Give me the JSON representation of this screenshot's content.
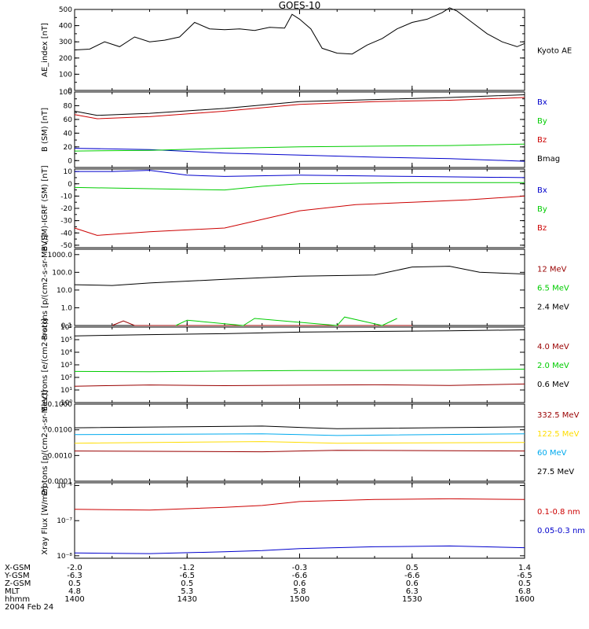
{
  "title": "GOES-10",
  "x": {
    "min": 1400,
    "max": 1600,
    "ticks": [
      1400,
      1430,
      1500,
      1530,
      1600
    ]
  },
  "footer": {
    "row_labels": [
      "X-GSM",
      "Y-GSM",
      "Z-GSM",
      "MLT",
      "hhmm"
    ],
    "columns": [
      [
        "-2.0",
        "-6.3",
        "0.5",
        "4.8",
        "1400"
      ],
      [
        "-1.2",
        "-6.5",
        "0.5",
        "5.3",
        "1430"
      ],
      [
        "-0.3",
        "-6.6",
        "0.6",
        "5.8",
        "1500"
      ],
      [
        "0.5",
        "-6.6",
        "0.6",
        "6.3",
        "1530"
      ],
      [
        "1.4",
        "-6.5",
        "0.5",
        "6.8",
        "1600"
      ]
    ],
    "date": "2004 Feb 24"
  },
  "colors": {
    "black": "#000000",
    "blue": "#0000cc",
    "green": "#00cc00",
    "red": "#cc0000",
    "darkred": "#990000",
    "yellow": "#ffdd00",
    "cyan": "#00aaee"
  },
  "chart_data": [
    {
      "type": "line",
      "id": "ae",
      "ylabel": "AE_index [nT]",
      "ylim": [
        0,
        500
      ],
      "yscale": "linear",
      "yticks": [
        0,
        100,
        200,
        300,
        400,
        500
      ],
      "ytick_labels": [
        "0",
        "100",
        "200",
        "300",
        "400",
        "500"
      ],
      "series": [
        {
          "name": "Kyoto AE",
          "color": "#000000",
          "x": [
            1400,
            1404,
            1408,
            1412,
            1416,
            1420,
            1424,
            1428,
            1432,
            1436,
            1440,
            1444,
            1448,
            1452,
            1456,
            1458,
            1500,
            1503,
            1506,
            1510,
            1514,
            1518,
            1522,
            1526,
            1530,
            1534,
            1538,
            1540,
            1542,
            1546,
            1550,
            1554,
            1558,
            1600
          ],
          "y": [
            250,
            255,
            300,
            270,
            330,
            300,
            310,
            330,
            420,
            380,
            375,
            380,
            370,
            390,
            385,
            470,
            440,
            380,
            260,
            230,
            225,
            280,
            320,
            380,
            420,
            440,
            480,
            510,
            490,
            420,
            350,
            300,
            270,
            290
          ]
        }
      ]
    },
    {
      "type": "line",
      "id": "bsm",
      "ylabel": "B (SM) [nT]",
      "ylim": [
        -10,
        100
      ],
      "yscale": "linear",
      "yticks": [
        0,
        20,
        40,
        60,
        80,
        100
      ],
      "ytick_labels": [
        "0",
        "20",
        "40",
        "60",
        "80",
        "100"
      ],
      "series": [
        {
          "name": "Bx",
          "color": "#0000cc",
          "x": [
            1400,
            1420,
            1440,
            1500,
            1520,
            1540,
            1600
          ],
          "y": [
            18,
            16,
            11,
            8,
            5,
            3,
            -1
          ]
        },
        {
          "name": "By",
          "color": "#00cc00",
          "x": [
            1400,
            1420,
            1440,
            1500,
            1520,
            1540,
            1600
          ],
          "y": [
            14,
            15,
            18,
            20,
            21,
            22,
            24
          ]
        },
        {
          "name": "Bz",
          "color": "#cc0000",
          "x": [
            1400,
            1406,
            1420,
            1440,
            1500,
            1520,
            1540,
            1600
          ],
          "y": [
            67,
            61,
            64,
            72,
            82,
            86,
            88,
            92
          ]
        },
        {
          "name": "Bmag",
          "color": "#000000",
          "x": [
            1400,
            1406,
            1420,
            1440,
            1500,
            1520,
            1540,
            1600
          ],
          "y": [
            72,
            66,
            69,
            76,
            86,
            89,
            92,
            96
          ]
        }
      ]
    },
    {
      "type": "line",
      "id": "bdiff",
      "ylabel": "B (SM)-IGRF (SM) [nT]",
      "ylim": [
        -52,
        12
      ],
      "yscale": "linear",
      "yticks": [
        -50,
        -40,
        -30,
        -20,
        -10,
        0,
        10
      ],
      "ytick_labels": [
        "-50",
        "-40",
        "-30",
        "-20",
        "-10",
        "0",
        "10"
      ],
      "series": [
        {
          "name": "Bx",
          "color": "#0000cc",
          "x": [
            1400,
            1410,
            1420,
            1430,
            1440,
            1500,
            1530,
            1600
          ],
          "y": [
            10,
            10,
            11,
            7,
            6,
            7,
            6,
            5
          ]
        },
        {
          "name": "By",
          "color": "#00cc00",
          "x": [
            1400,
            1420,
            1440,
            1450,
            1500,
            1530,
            1600
          ],
          "y": [
            -3,
            -4,
            -5,
            -2,
            0,
            1,
            1
          ]
        },
        {
          "name": "Bz",
          "color": "#cc0000",
          "x": [
            1400,
            1406,
            1420,
            1440,
            1500,
            1515,
            1530,
            1545,
            1600
          ],
          "y": [
            -36,
            -42,
            -39,
            -36,
            -22,
            -17,
            -15,
            -13,
            -10
          ]
        }
      ]
    },
    {
      "type": "line",
      "id": "protons",
      "ylabel": "Protons [p/(cm2-s-sr-MeV)]",
      "ylim": [
        0.1,
        2000
      ],
      "yscale": "log",
      "yticks": [
        0.1,
        1,
        10,
        100,
        1000
      ],
      "ytick_labels": [
        "0.1",
        "1.0",
        "10.0",
        "100.0",
        "1000.0"
      ],
      "series": [
        {
          "name": "12 MeV",
          "color": "#990000",
          "x": [
            1410,
            1413,
            1416,
            1420,
            1500,
            1530
          ],
          "y": [
            0.1,
            0.18,
            0.1,
            0.1,
            0.1,
            0.1
          ]
        },
        {
          "name": "6.5 MeV",
          "color": "#00cc00",
          "x": [
            1427,
            1430,
            1445,
            1448,
            1510,
            1512,
            1522,
            1526
          ],
          "y": [
            0.1,
            0.2,
            0.1,
            0.25,
            0.1,
            0.3,
            0.1,
            0.25
          ]
        },
        {
          "name": "2.4 MeV",
          "color": "#000000",
          "x": [
            1400,
            1410,
            1420,
            1440,
            1500,
            1520,
            1530,
            1540,
            1548,
            1600
          ],
          "y": [
            20,
            18,
            25,
            40,
            60,
            70,
            200,
            220,
            100,
            80
          ]
        }
      ]
    },
    {
      "type": "line",
      "id": "electrons",
      "ylabel": "Electrons [e/(cm2-s-sr)]",
      "ylim": [
        1,
        1000000
      ],
      "yscale": "log",
      "yticks": [
        1,
        10,
        100,
        1000,
        10000,
        100000,
        1000000
      ],
      "ytick_labels": [
        "10⁰",
        "10¹",
        "10²",
        "10³",
        "10⁴",
        "10⁵",
        "10⁶"
      ],
      "series": [
        {
          "name": "4.0 MeV",
          "color": "#990000",
          "x": [
            1400,
            1420,
            1440,
            1500,
            1520,
            1540,
            1600
          ],
          "y": [
            20,
            25,
            22,
            24,
            26,
            23,
            30
          ]
        },
        {
          "name": "2.0 MeV",
          "color": "#00cc00",
          "x": [
            1400,
            1420,
            1440,
            1500,
            1520,
            1540,
            1600
          ],
          "y": [
            300,
            280,
            320,
            350,
            360,
            380,
            450
          ]
        },
        {
          "name": "0.6 MeV",
          "color": "#000000",
          "x": [
            1400,
            1420,
            1440,
            1500,
            1520,
            1540,
            1600
          ],
          "y": [
            200000,
            250000,
            300000,
            400000,
            450000,
            500000,
            600000
          ]
        }
      ]
    },
    {
      "type": "line",
      "id": "hiprotons",
      "ylabel": "Protons [p/(cm2-s-sr-MeV)]",
      "ylim": [
        0.0001,
        0.1
      ],
      "yscale": "log",
      "yticks": [
        0.0001,
        0.001,
        0.01,
        0.1
      ],
      "ytick_labels": [
        "0.0001",
        "0.0010",
        "0.0100",
        "0.1000"
      ],
      "series": [
        {
          "name": "332.5 MeV",
          "color": "#990000",
          "x": [
            1400,
            1450,
            1510,
            1600
          ],
          "y": [
            0.0015,
            0.0014,
            0.0016,
            0.0015
          ]
        },
        {
          "name": "122.5 MeV",
          "color": "#ffdd00",
          "x": [
            1400,
            1450,
            1510,
            1600
          ],
          "y": [
            0.003,
            0.0035,
            0.003,
            0.0032
          ]
        },
        {
          "name": "60 MeV",
          "color": "#00aaee",
          "x": [
            1400,
            1450,
            1510,
            1600
          ],
          "y": [
            0.0065,
            0.007,
            0.006,
            0.007
          ]
        },
        {
          "name": "27.5 MeV",
          "color": "#000000",
          "x": [
            1400,
            1450,
            1510,
            1600
          ],
          "y": [
            0.012,
            0.014,
            0.011,
            0.013
          ]
        }
      ]
    },
    {
      "type": "line",
      "id": "xray",
      "ylabel": "Xray Flux [W/m2]",
      "ylim": [
        8.5e-09,
        1.2e-06
      ],
      "yscale": "log",
      "yticks": [
        1e-08,
        1e-07,
        1e-06
      ],
      "ytick_labels": [
        "10⁻⁸",
        "10⁻⁷",
        "10⁻⁶"
      ],
      "series": [
        {
          "name": "0.1-0.8 nm",
          "color": "#cc0000",
          "x": [
            1400,
            1420,
            1440,
            1450,
            1500,
            1520,
            1540,
            1600
          ],
          "y": [
            2.1e-07,
            2e-07,
            2.4e-07,
            2.7e-07,
            3.5e-07,
            4e-07,
            4.2e-07,
            4e-07
          ]
        },
        {
          "name": "0.05-0.3 nm",
          "color": "#0000cc",
          "x": [
            1400,
            1420,
            1440,
            1450,
            1500,
            1520,
            1540,
            1600
          ],
          "y": [
            1.2e-08,
            1.15e-08,
            1.3e-08,
            1.4e-08,
            1.6e-08,
            1.8e-08,
            1.9e-08,
            1.7e-08
          ]
        }
      ]
    }
  ]
}
